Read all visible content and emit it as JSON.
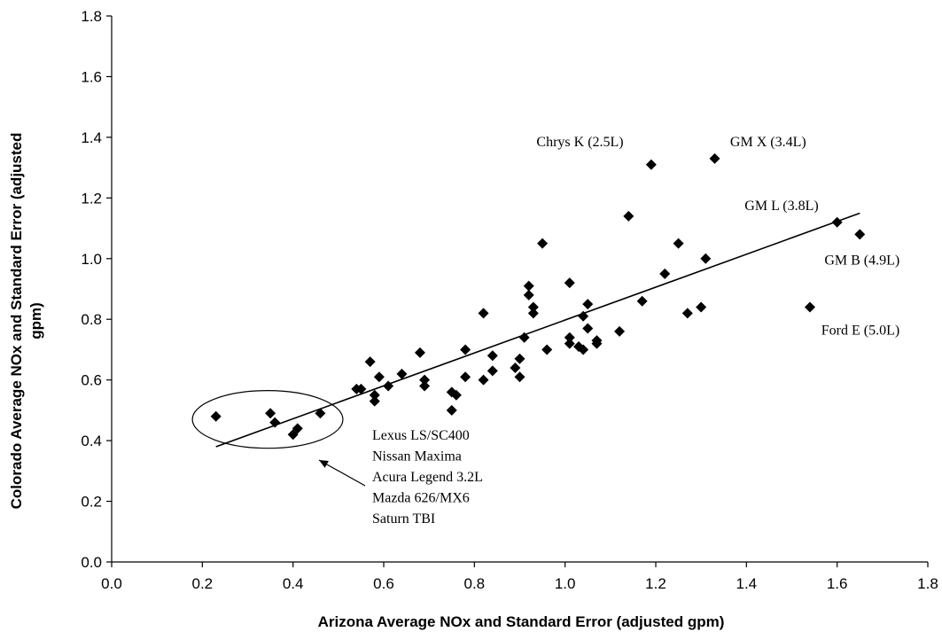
{
  "chart_data": {
    "type": "scatter",
    "title": "",
    "xlabel": "Arizona Average NOx and Standard Error (adjusted gpm)",
    "ylabel_line1": "Colorado Average NOx and Standard Error (adjusted",
    "ylabel_line2": "gpm)",
    "xlim": [
      0.0,
      1.8
    ],
    "ylim": [
      0.0,
      1.8
    ],
    "xticks": [
      "0.0",
      "0.2",
      "0.4",
      "0.6",
      "0.8",
      "1.0",
      "1.2",
      "1.4",
      "1.6",
      "1.8"
    ],
    "yticks": [
      "0.0",
      "0.2",
      "0.4",
      "0.6",
      "0.8",
      "1.0",
      "1.2",
      "1.4",
      "1.6",
      "1.8"
    ],
    "grid": false,
    "marker": "diamond",
    "marker_color": "#000000",
    "points": [
      [
        0.23,
        0.48
      ],
      [
        0.35,
        0.49
      ],
      [
        0.36,
        0.46
      ],
      [
        0.4,
        0.42
      ],
      [
        0.41,
        0.44
      ],
      [
        0.46,
        0.49
      ],
      [
        0.54,
        0.57
      ],
      [
        0.55,
        0.57
      ],
      [
        0.57,
        0.66
      ],
      [
        0.58,
        0.55
      ],
      [
        0.58,
        0.53
      ],
      [
        0.59,
        0.61
      ],
      [
        0.61,
        0.58
      ],
      [
        0.64,
        0.62
      ],
      [
        0.68,
        0.69
      ],
      [
        0.69,
        0.6
      ],
      [
        0.69,
        0.58
      ],
      [
        0.75,
        0.56
      ],
      [
        0.75,
        0.5
      ],
      [
        0.76,
        0.55
      ],
      [
        0.78,
        0.7
      ],
      [
        0.78,
        0.61
      ],
      [
        0.82,
        0.82
      ],
      [
        0.82,
        0.6
      ],
      [
        0.84,
        0.68
      ],
      [
        0.84,
        0.63
      ],
      [
        0.89,
        0.64
      ],
      [
        0.9,
        0.61
      ],
      [
        0.9,
        0.67
      ],
      [
        0.91,
        0.74
      ],
      [
        0.92,
        0.91
      ],
      [
        0.92,
        0.88
      ],
      [
        0.93,
        0.84
      ],
      [
        0.93,
        0.82
      ],
      [
        0.95,
        1.05
      ],
      [
        0.96,
        0.7
      ],
      [
        1.01,
        0.92
      ],
      [
        1.01,
        0.74
      ],
      [
        1.01,
        0.72
      ],
      [
        1.03,
        0.71
      ],
      [
        1.04,
        0.7
      ],
      [
        1.04,
        0.81
      ],
      [
        1.05,
        0.85
      ],
      [
        1.05,
        0.77
      ],
      [
        1.07,
        0.72
      ],
      [
        1.07,
        0.73
      ],
      [
        1.12,
        0.76
      ],
      [
        1.14,
        1.14
      ],
      [
        1.17,
        0.86
      ],
      [
        1.19,
        1.31
      ],
      [
        1.22,
        0.95
      ],
      [
        1.25,
        1.05
      ],
      [
        1.27,
        0.82
      ],
      [
        1.3,
        0.84
      ],
      [
        1.31,
        1.0
      ],
      [
        1.33,
        1.33
      ],
      [
        1.54,
        0.84
      ],
      [
        1.6,
        1.12
      ],
      [
        1.65,
        1.08
      ]
    ],
    "trendline": {
      "x": [
        0.23,
        1.65
      ],
      "y": [
        0.38,
        1.15
      ]
    },
    "annotations": [
      {
        "text": "Chrys K (2.5L)",
        "x": 0.937,
        "y": 1.37
      },
      {
        "text": "GM X (3.4L)",
        "x": 1.364,
        "y": 1.37
      },
      {
        "text": "GM L (3.8L)",
        "x": 1.396,
        "y": 1.16
      },
      {
        "text": "GM B (4.9L)",
        "x": 1.572,
        "y": 0.98
      },
      {
        "text": "Ford E (5.0L)",
        "x": 1.565,
        "y": 0.75
      }
    ],
    "cluster_labels": [
      "Lexus LS/SC400",
      "Nissan Maxima",
      "Acura Legend 3.2L",
      "Mazda 626/MX6",
      "Saturn TBI"
    ],
    "cluster_ellipse": {
      "cx": 0.344,
      "cy": 0.47,
      "rx": 0.166,
      "ry": 0.095
    }
  }
}
